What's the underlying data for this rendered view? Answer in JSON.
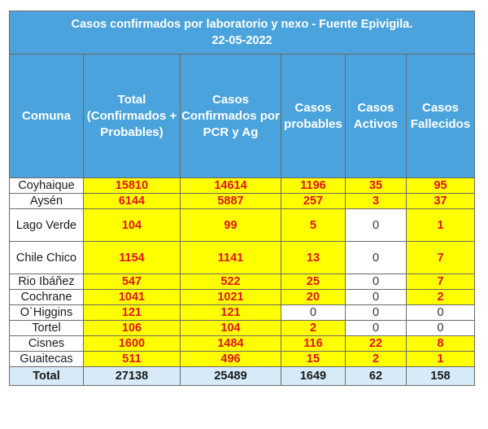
{
  "title": {
    "line1": "Casos confirmados por laboratorio y nexo - Fuente Epivigila.",
    "line2": "22-05-2022"
  },
  "headers": {
    "comuna": "Comuna",
    "total": "Total (Confirmados + Probables)",
    "pcr": "Casos Confirmados por PCR y Ag",
    "probables": "Casos probables",
    "activos": "Casos Activos",
    "fallecidos": "Casos Fallecidos"
  },
  "rows": [
    {
      "comuna": "Coyhaique",
      "total": "15810",
      "pcr": "14614",
      "probables": "1196",
      "activos": "35",
      "fallecidos": "95"
    },
    {
      "comuna": "Aysén",
      "total": "6144",
      "pcr": "5887",
      "probables": "257",
      "activos": "3",
      "fallecidos": "37"
    },
    {
      "comuna": "Lago Verde",
      "total": "104",
      "pcr": "99",
      "probables": "5",
      "activos": "0",
      "fallecidos": "1"
    },
    {
      "comuna": "Chile Chico",
      "total": "1154",
      "pcr": "1141",
      "probables": "13",
      "activos": "0",
      "fallecidos": "7"
    },
    {
      "comuna": "Rio Ibáñez",
      "total": "547",
      "pcr": "522",
      "probables": "25",
      "activos": "0",
      "fallecidos": "7"
    },
    {
      "comuna": "Cochrane",
      "total": "1041",
      "pcr": "1021",
      "probables": "20",
      "activos": "0",
      "fallecidos": "2"
    },
    {
      "comuna": "O`Higgins",
      "total": "121",
      "pcr": "121",
      "probables": "0",
      "activos": "0",
      "fallecidos": "0"
    },
    {
      "comuna": "Tortel",
      "total": "106",
      "pcr": "104",
      "probables": "2",
      "activos": "0",
      "fallecidos": "0"
    },
    {
      "comuna": "Cisnes",
      "total": "1600",
      "pcr": "1484",
      "probables": "116",
      "activos": "22",
      "fallecidos": "8"
    },
    {
      "comuna": "Guaitecas",
      "total": "511",
      "pcr": "496",
      "probables": "15",
      "activos": "2",
      "fallecidos": "1"
    }
  ],
  "totals": {
    "label": "Total",
    "total": "27138",
    "pcr": "25489",
    "probables": "1649",
    "activos": "62",
    "fallecidos": "158"
  },
  "colors": {
    "header": "#4aa3dc",
    "highlight": "#ffff00",
    "highlight_text": "#e0141e",
    "total_row": "#d7eaf7"
  }
}
